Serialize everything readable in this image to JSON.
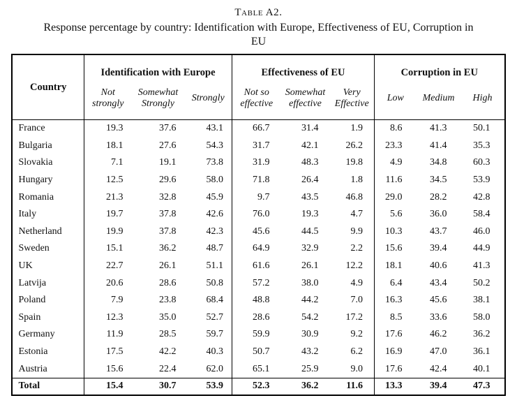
{
  "caption": {
    "title": "Table A2.",
    "subtitle_lines": [
      "Response percentage by country: Identification with Europe, Effectiveness of EU, Corruption in",
      "EU"
    ]
  },
  "table": {
    "country_header": "Country",
    "groups": [
      {
        "label": "Identification with Europe",
        "columns": [
          "Not strongly",
          "Somewhat Strongly",
          "Strongly"
        ]
      },
      {
        "label": "Effectiveness of EU",
        "columns": [
          "Not so effective",
          "Somewhat effective",
          "Very Effective"
        ]
      },
      {
        "label": "Corruption in EU",
        "columns": [
          "Low",
          "Medium",
          "High"
        ]
      }
    ],
    "rows": [
      {
        "country": "France",
        "values": [
          "19.3",
          "37.6",
          "43.1",
          "66.7",
          "31.4",
          "1.9",
          "8.6",
          "41.3",
          "50.1"
        ]
      },
      {
        "country": "Bulgaria",
        "values": [
          "18.1",
          "27.6",
          "54.3",
          "31.7",
          "42.1",
          "26.2",
          "23.3",
          "41.4",
          "35.3"
        ]
      },
      {
        "country": "Slovakia",
        "values": [
          "7.1",
          "19.1",
          "73.8",
          "31.9",
          "48.3",
          "19.8",
          "4.9",
          "34.8",
          "60.3"
        ]
      },
      {
        "country": "Hungary",
        "values": [
          "12.5",
          "29.6",
          "58.0",
          "71.8",
          "26.4",
          "1.8",
          "11.6",
          "34.5",
          "53.9"
        ]
      },
      {
        "country": "Romania",
        "values": [
          "21.3",
          "32.8",
          "45.9",
          "9.7",
          "43.5",
          "46.8",
          "29.0",
          "28.2",
          "42.8"
        ]
      },
      {
        "country": "Italy",
        "values": [
          "19.7",
          "37.8",
          "42.6",
          "76.0",
          "19.3",
          "4.7",
          "5.6",
          "36.0",
          "58.4"
        ]
      },
      {
        "country": "Netherland",
        "values": [
          "19.9",
          "37.8",
          "42.3",
          "45.6",
          "44.5",
          "9.9",
          "10.3",
          "43.7",
          "46.0"
        ]
      },
      {
        "country": "Sweden",
        "values": [
          "15.1",
          "36.2",
          "48.7",
          "64.9",
          "32.9",
          "2.2",
          "15.6",
          "39.4",
          "44.9"
        ]
      },
      {
        "country": "UK",
        "values": [
          "22.7",
          "26.1",
          "51.1",
          "61.6",
          "26.1",
          "12.2",
          "18.1",
          "40.6",
          "41.3"
        ]
      },
      {
        "country": "Latvija",
        "values": [
          "20.6",
          "28.6",
          "50.8",
          "57.2",
          "38.0",
          "4.9",
          "6.4",
          "43.4",
          "50.2"
        ]
      },
      {
        "country": "Poland",
        "values": [
          "7.9",
          "23.8",
          "68.4",
          "48.8",
          "44.2",
          "7.0",
          "16.3",
          "45.6",
          "38.1"
        ]
      },
      {
        "country": "Spain",
        "values": [
          "12.3",
          "35.0",
          "52.7",
          "28.6",
          "54.2",
          "17.2",
          "8.5",
          "33.6",
          "58.0"
        ]
      },
      {
        "country": "Germany",
        "values": [
          "11.9",
          "28.5",
          "59.7",
          "59.9",
          "30.9",
          "9.2",
          "17.6",
          "46.2",
          "36.2"
        ]
      },
      {
        "country": "Estonia",
        "values": [
          "17.5",
          "42.2",
          "40.3",
          "50.7",
          "43.2",
          "6.2",
          "16.9",
          "47.0",
          "36.1"
        ]
      },
      {
        "country": "Austria",
        "values": [
          "15.6",
          "22.4",
          "62.0",
          "65.1",
          "25.9",
          "9.0",
          "17.6",
          "42.4",
          "40.1"
        ]
      }
    ],
    "total": {
      "label": "Total",
      "values": [
        "15.4",
        "30.7",
        "53.9",
        "52.3",
        "36.2",
        "11.6",
        "13.3",
        "39.4",
        "47.3"
      ]
    }
  }
}
